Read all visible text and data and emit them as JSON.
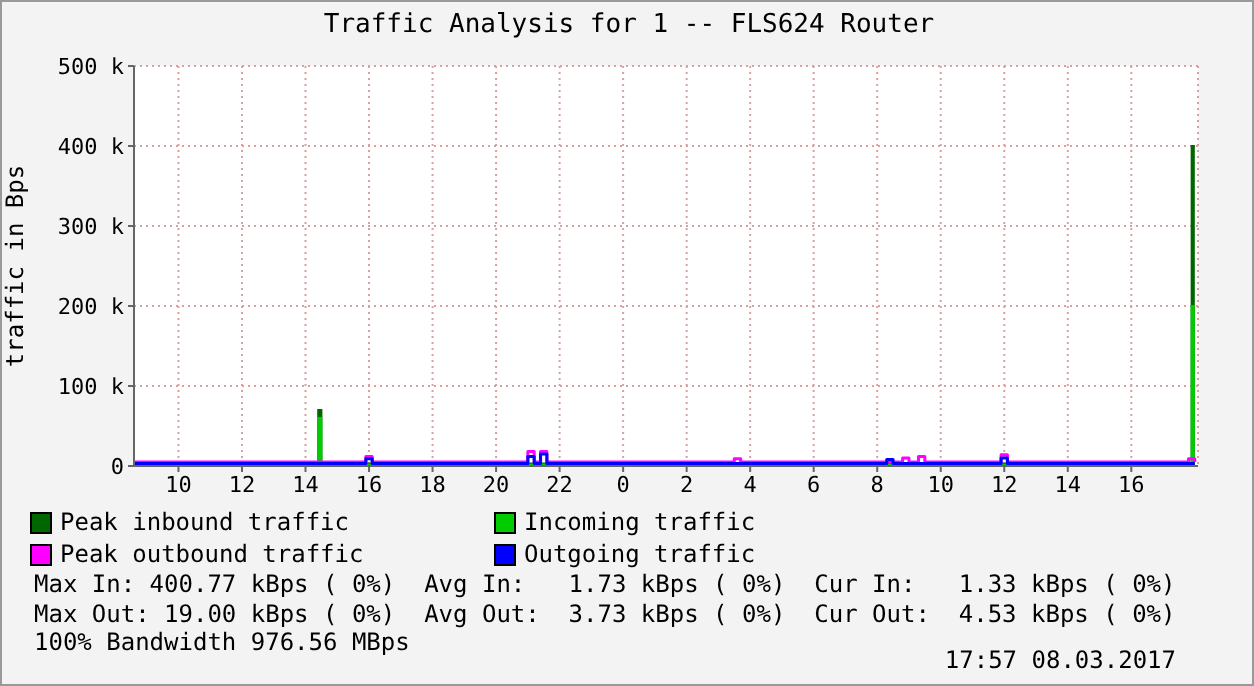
{
  "chart_data": {
    "type": "step",
    "title": "Traffic Analysis for 1 -- FLS624 Router",
    "ylabel": "traffic in Bps",
    "xlim": [
      "2017-03-07T08:36",
      "2017-03-08T18:06"
    ],
    "xticks": [
      {
        "value": "2017-03-07T10:00",
        "label": "10"
      },
      {
        "value": "2017-03-07T12:00",
        "label": "12"
      },
      {
        "value": "2017-03-07T14:00",
        "label": "14"
      },
      {
        "value": "2017-03-07T16:00",
        "label": "16"
      },
      {
        "value": "2017-03-07T18:00",
        "label": "18"
      },
      {
        "value": "2017-03-07T20:00",
        "label": "20"
      },
      {
        "value": "2017-03-07T22:00",
        "label": "22"
      },
      {
        "value": "2017-03-08T00:00",
        "label": "0"
      },
      {
        "value": "2017-03-08T02:00",
        "label": "2"
      },
      {
        "value": "2017-03-08T04:00",
        "label": "4"
      },
      {
        "value": "2017-03-08T06:00",
        "label": "6"
      },
      {
        "value": "2017-03-08T08:00",
        "label": "8"
      },
      {
        "value": "2017-03-08T10:00",
        "label": "10"
      },
      {
        "value": "2017-03-08T12:00",
        "label": "12"
      },
      {
        "value": "2017-03-08T14:00",
        "label": "14"
      },
      {
        "value": "2017-03-08T16:00",
        "label": "16"
      }
    ],
    "ylim": [
      0,
      500000
    ],
    "yticks": [
      0,
      {
        "value": 100000,
        "label": "100 k"
      },
      {
        "value": 200000,
        "label": "200 k"
      },
      {
        "value": 300000,
        "label": "300 k"
      },
      {
        "value": 400000,
        "label": "400 k"
      },
      {
        "value": 500000,
        "label": "500 k"
      }
    ],
    "grid": true,
    "legend": "bottom",
    "series": [
      {
        "name": "Peak inbound traffic",
        "type": "area",
        "color": "#006600",
        "x": [
          "2017-03-07T08:36",
          "2017-03-07T14:24",
          "2017-03-07T14:30",
          "2017-03-08T17:48",
          "2017-03-08T17:54",
          "2017-03-08T18:00"
        ],
        "values": [
          3000,
          70000,
          3000,
          3000,
          400000,
          400000
        ]
      },
      {
        "name": "Incoming traffic",
        "type": "area",
        "color": "#00cc00",
        "x": [
          "2017-03-07T08:36",
          "2017-03-07T14:24",
          "2017-03-07T14:30",
          "2017-03-08T17:48",
          "2017-03-08T17:54",
          "2017-03-08T18:00"
        ],
        "values": [
          2000,
          60000,
          2000,
          2000,
          200000,
          200000
        ]
      },
      {
        "name": "Peak outbound traffic",
        "color": "#ff00ff",
        "x": [
          "2017-03-07T08:36",
          "2017-03-07T15:54",
          "2017-03-07T16:06",
          "2017-03-07T21:00",
          "2017-03-07T21:12",
          "2017-03-07T21:24",
          "2017-03-07T21:36",
          "2017-03-08T03:30",
          "2017-03-08T03:42",
          "2017-03-08T08:48",
          "2017-03-08T09:00",
          "2017-03-08T09:18",
          "2017-03-08T09:30",
          "2017-03-08T11:54",
          "2017-03-08T12:06",
          "2017-03-08T17:48",
          "2017-03-08T18:00"
        ],
        "values": [
          5000,
          12000,
          5000,
          18000,
          5000,
          18000,
          5000,
          9000,
          5000,
          10000,
          5000,
          12000,
          5000,
          14000,
          5000,
          9000,
          5000
        ]
      },
      {
        "name": "Outgoing traffic",
        "color": "#0000ff",
        "x": [
          "2017-03-07T08:36",
          "2017-03-07T15:54",
          "2017-03-07T16:06",
          "2017-03-07T21:00",
          "2017-03-07T21:12",
          "2017-03-07T21:24",
          "2017-03-07T21:36",
          "2017-03-08T08:18",
          "2017-03-08T08:30",
          "2017-03-08T11:54",
          "2017-03-08T12:06",
          "2017-03-08T18:00"
        ],
        "values": [
          3000,
          9000,
          3000,
          12000,
          3000,
          15000,
          3000,
          8000,
          3000,
          10000,
          3000,
          3000
        ]
      }
    ],
    "annotations": [
      "Max In: 400.77 kBps ( 0%)  Avg In:   1.73 kBps ( 0%)  Cur In:   1.33 kBps ( 0%)",
      "Max Out: 19.00 kBps ( 0%)  Avg Out:  3.73 kBps ( 0%)  Cur Out:  4.53 kBps ( 0%)",
      "100% Bandwidth 976.56 MBps",
      "17:57 08.03.2017"
    ]
  }
}
